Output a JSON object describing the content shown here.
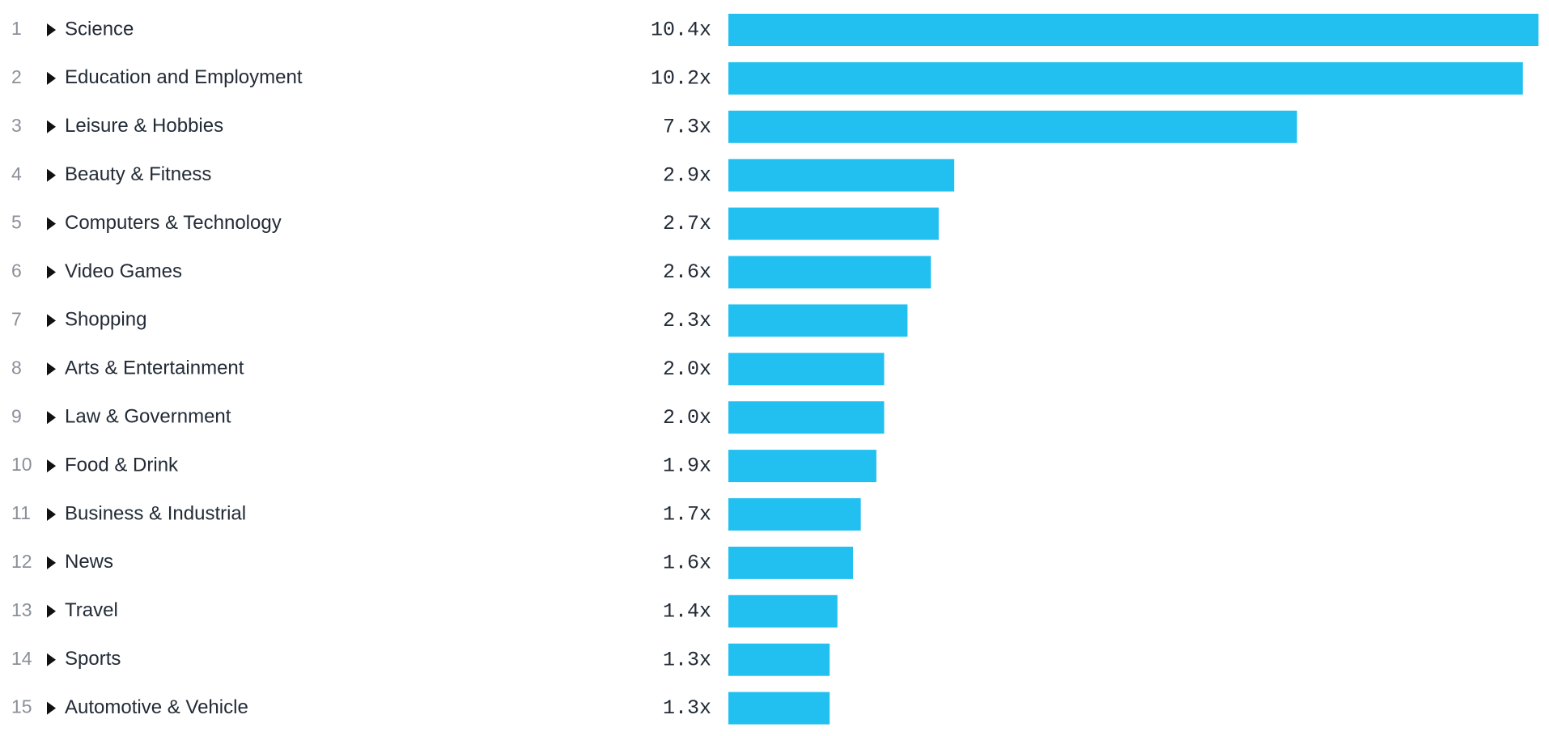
{
  "chart_data": {
    "type": "bar",
    "orientation": "horizontal",
    "ranks": [
      1,
      2,
      3,
      4,
      5,
      6,
      7,
      8,
      9,
      10,
      11,
      12,
      13,
      14,
      15
    ],
    "categories": [
      "Science",
      "Education and Employment",
      "Leisure & Hobbies",
      "Beauty & Fitness",
      "Computers & Technology",
      "Video Games",
      "Shopping",
      "Arts & Entertainment",
      "Law & Government",
      "Food & Drink",
      "Business & Industrial",
      "News",
      "Travel",
      "Sports",
      "Automotive & Vehicle"
    ],
    "values": [
      10.4,
      10.2,
      7.3,
      2.9,
      2.7,
      2.6,
      2.3,
      2.0,
      2.0,
      1.9,
      1.7,
      1.6,
      1.4,
      1.3,
      1.3
    ],
    "value_labels": [
      "10.4x",
      "10.2x",
      "7.3x",
      "2.9x",
      "2.7x",
      "2.6x",
      "2.3x",
      "2.0x",
      "2.0x",
      "1.9x",
      "1.7x",
      "1.6x",
      "1.4x",
      "1.3x",
      "1.3x"
    ],
    "color": "#22c0f0"
  }
}
